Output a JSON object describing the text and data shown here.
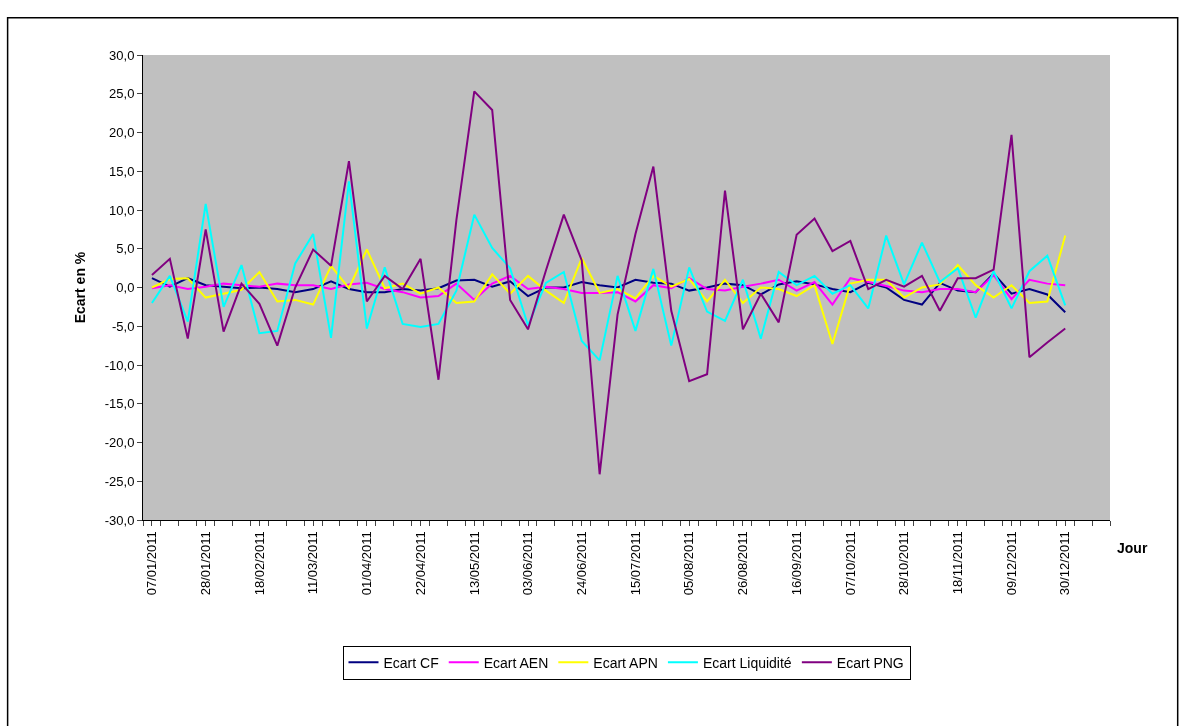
{
  "chart_data": {
    "type": "line",
    "xlabel": "Jour",
    "ylabel": "Ecart en %",
    "categories": [
      "07/01/2011",
      null,
      null,
      "28/01/2011",
      null,
      null,
      "18/02/2011",
      null,
      null,
      "11/03/2011",
      null,
      null,
      "01/04/2011",
      null,
      null,
      "22/04/2011",
      null,
      null,
      "13/05/2011",
      null,
      null,
      "03/06/2011",
      null,
      null,
      "24/06/2011",
      null,
      null,
      "15/07/2011",
      null,
      null,
      "05/08/2011",
      null,
      null,
      "26/08/2011",
      null,
      null,
      "16/09/2011",
      null,
      null,
      "07/10/2011",
      null,
      null,
      "28/10/2011",
      null,
      null,
      "18/11/2011",
      null,
      null,
      "09/12/2011",
      null,
      null,
      "30/12/2011",
      null,
      null
    ],
    "ylim": [
      -30,
      30
    ],
    "yticks": [
      {
        "value": -30,
        "label": "-30,0"
      },
      {
        "value": -25,
        "label": "-25,0"
      },
      {
        "value": -20,
        "label": "-20,0"
      },
      {
        "value": -15,
        "label": "-15,0"
      },
      {
        "value": -10,
        "label": "-10,0"
      },
      {
        "value": -5,
        "label": "-5,0"
      },
      {
        "value": 0,
        "label": "0,0"
      },
      {
        "value": 5,
        "label": "5,0"
      },
      {
        "value": 10,
        "label": "10,0"
      },
      {
        "value": 15,
        "label": "15,0"
      },
      {
        "value": 20,
        "label": "20,0"
      },
      {
        "value": 25,
        "label": "25,0"
      },
      {
        "value": 30,
        "label": "30,0"
      }
    ],
    "grid": false,
    "legend": "bottom",
    "marker": "none",
    "line_style": "solid",
    "series": [
      {
        "name": "Ecart CF",
        "color": "#000080",
        "values": [
          1.2,
          0.1,
          1.2,
          0.3,
          0.1,
          -0.1,
          0,
          -0.2,
          -0.6,
          -0.2,
          0.8,
          -0.2,
          -0.6,
          -0.6,
          -0.2,
          -0.4,
          -0.1,
          0.9,
          1.0,
          0.1,
          0.8,
          -1.1,
          0,
          0,
          0.7,
          0.3,
          0,
          1.0,
          0.6,
          0.5,
          -0.4,
          0,
          0.5,
          0.3,
          -0.9,
          0.4,
          0.8,
          0.4,
          -0.2,
          -0.6,
          0.6,
          0,
          -1.6,
          -2.2,
          0.6,
          -0.4,
          -0.6,
          1.8,
          -0.8,
          -0.2,
          -0.9,
          -3.2,
          null,
          null
        ]
      },
      {
        "name": "Ecart AEN",
        "color": "#ff00ff",
        "values": [
          -0.1,
          0.3,
          -0.2,
          0.1,
          0.5,
          0.3,
          0.1,
          0.5,
          0.3,
          0.3,
          -0.2,
          0.4,
          0.6,
          -0.2,
          -0.6,
          -1.3,
          -1.1,
          0.5,
          -1.6,
          0.5,
          1.5,
          -0.2,
          0.1,
          -0.2,
          -0.7,
          -0.7,
          -0.6,
          -1.8,
          0.3,
          -0.1,
          1.2,
          -0.2,
          -0.4,
          0.1,
          0.5,
          1.0,
          -0.4,
          0.7,
          -2.2,
          1.2,
          0.7,
          0.2,
          -0.4,
          -0.6,
          -0.2,
          -0.2,
          -0.6,
          1.6,
          -1.5,
          1.0,
          0.5,
          0.3,
          null,
          null
        ]
      },
      {
        "name": "Ecart APN",
        "color": "#ffff00",
        "values": [
          0,
          1.1,
          1.2,
          -1.3,
          -0.8,
          -0.3,
          2.0,
          -1.8,
          -1.6,
          -2.2,
          2.8,
          -0.1,
          4.9,
          -0.1,
          0.5,
          -0.8,
          0,
          -2.0,
          -1.8,
          1.7,
          -0.8,
          1.5,
          -0.4,
          -2.0,
          3.8,
          -0.7,
          -0.2,
          -1.4,
          1.5,
          0.1,
          1.1,
          -1.8,
          1.0,
          -2.0,
          0,
          -0.2,
          -1.1,
          0.3,
          -7.3,
          0.5,
          1.0,
          1.0,
          -1.3,
          0,
          0.4,
          2.9,
          0.3,
          -1.3,
          0.3,
          -2.0,
          -1.8,
          6.7,
          null,
          null
        ]
      },
      {
        "name": "Ecart Liquidité",
        "color": "#00ffff",
        "values": [
          -2.0,
          1.5,
          -4.4,
          10.8,
          -2.5,
          2.9,
          -5.9,
          -5.6,
          3.1,
          6.9,
          -6.5,
          13.7,
          -5.3,
          2.6,
          -4.7,
          -5.1,
          -4.7,
          -0.4,
          9.4,
          5.1,
          2.5,
          -4.9,
          0.6,
          2.0,
          -6.9,
          -9.4,
          1.5,
          -5.6,
          2.4,
          -7.5,
          2.6,
          -3.1,
          -4.3,
          1.0,
          -6.6,
          2.0,
          0.3,
          1.5,
          -0.8,
          0.3,
          -2.7,
          6.7,
          0.4,
          5.8,
          0.7,
          2.5,
          -3.9,
          2.1,
          -2.7,
          2.1,
          4.1,
          -2.3,
          null,
          null
        ]
      },
      {
        "name": "Ecart PNG",
        "color": "#800080",
        "values": [
          1.6,
          3.7,
          -6.6,
          7.5,
          -5.7,
          0.5,
          -2.1,
          -7.5,
          0,
          4.9,
          2.8,
          16.3,
          -1.8,
          1.5,
          -0.2,
          3.7,
          -11.9,
          8.7,
          25.3,
          22.9,
          -1.6,
          -5.4,
          2.2,
          9.4,
          3.5,
          -24.1,
          -3.5,
          6.9,
          15.6,
          -3.0,
          -12.1,
          -11.2,
          12.5,
          -5.4,
          -0.8,
          -4.5,
          6.8,
          8.9,
          4.7,
          6.0,
          -0.2,
          1.0,
          0.1,
          1.5,
          -3.0,
          1.2,
          1.2,
          2.3,
          19.7,
          -9.0,
          -7.1,
          -5.3,
          null,
          null
        ]
      }
    ]
  }
}
